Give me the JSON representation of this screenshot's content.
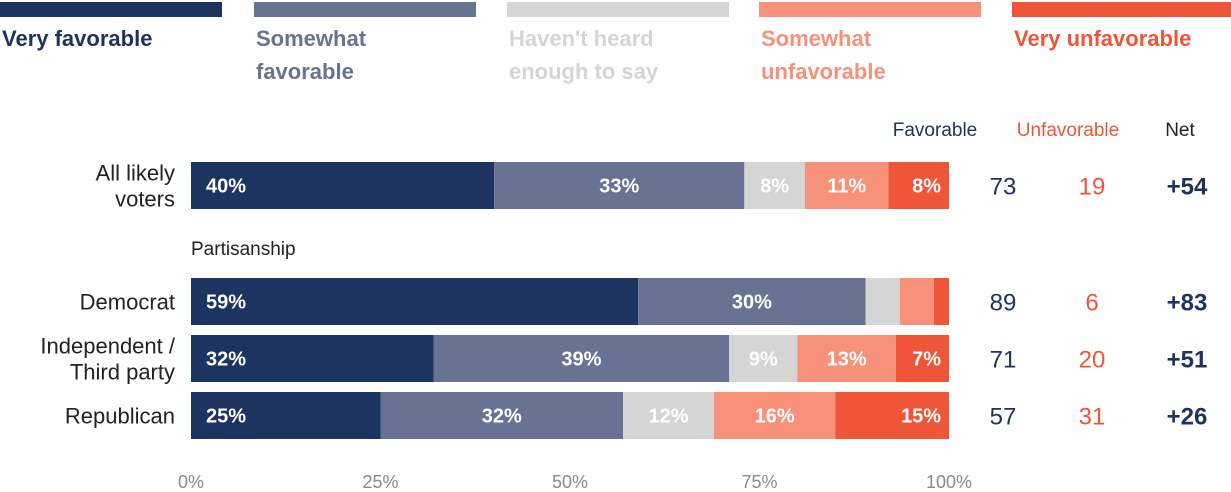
{
  "chart_data": {
    "type": "bar",
    "orientation": "horizontal",
    "stacked": true,
    "xlim": [
      0,
      100
    ],
    "x_ticks": [
      "0%",
      "25%",
      "50%",
      "75%",
      "100%"
    ],
    "group_label": "Partisanship",
    "columns": {
      "favorable": "Favorable",
      "unfavorable": "Unfavorable",
      "net": "Net"
    },
    "series": [
      {
        "key": "vf",
        "name": "Very favorable",
        "name_lines": [
          "Very favorable"
        ],
        "color": "#1d3461",
        "label_color": "#1d3461"
      },
      {
        "key": "sf",
        "name": "Somewhat favorable",
        "name_lines": [
          "Somewhat",
          "favorable"
        ],
        "color": "#687394",
        "label_color": "#687394"
      },
      {
        "key": "nh",
        "name": "Haven't heard enough to say",
        "name_lines": [
          "Haven't heard",
          "enough to say"
        ],
        "color": "#d5d5d6",
        "label_color": "#d5d5d6"
      },
      {
        "key": "su",
        "name": "Somewhat unfavorable",
        "name_lines": [
          "Somewhat",
          "unfavorable"
        ],
        "color": "#f7917a",
        "label_color": "#f7917a"
      },
      {
        "key": "vu",
        "name": "Very unfavorable",
        "name_lines": [
          "Very unfavorable"
        ],
        "color": "#ef5638",
        "label_color": "#ef5638"
      }
    ],
    "rows": [
      {
        "label_lines": [
          "All likely",
          "voters"
        ],
        "values": [
          40,
          33,
          8,
          11,
          8
        ],
        "labels": [
          "40%",
          "33%",
          "8%",
          "11%",
          "8%"
        ],
        "favorable": "73",
        "unfavorable": "19",
        "net": "+54"
      },
      {
        "label_lines": [
          "Democrat"
        ],
        "values": [
          59,
          30,
          4.5,
          4.5,
          2
        ],
        "labels": [
          "59%",
          "30%",
          "",
          "",
          ""
        ],
        "favorable": "89",
        "unfavorable": "6",
        "net": "+83"
      },
      {
        "label_lines": [
          "Independent /",
          "Third party"
        ],
        "values": [
          32,
          39,
          9,
          13,
          7
        ],
        "labels": [
          "32%",
          "39%",
          "9%",
          "13%",
          "7%"
        ],
        "favorable": "71",
        "unfavorable": "20",
        "net": "+51"
      },
      {
        "label_lines": [
          "Republican"
        ],
        "values": [
          25,
          32,
          12,
          16,
          15
        ],
        "labels": [
          "25%",
          "32%",
          "12%",
          "16%",
          "15%"
        ],
        "favorable": "57",
        "unfavorable": "31",
        "net": "+26"
      }
    ],
    "colors": {
      "favorable_text": "#1d3461",
      "unfavorable_text": "#ef5638",
      "net_text": "#1d3461",
      "net_head": "#222222"
    }
  }
}
